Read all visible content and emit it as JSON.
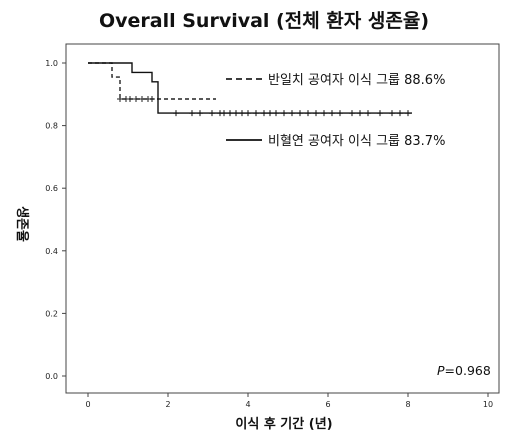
{
  "title": "Overall Survival (전체 환자 생존율)",
  "chart_data": {
    "type": "line",
    "title": "Overall Survival (전체 환자 생존율)",
    "xlabel": "이식 후 기간 (년)",
    "ylabel": "생존율",
    "xlim": [
      0,
      10
    ],
    "ylim": [
      0,
      1.0
    ],
    "x_ticks": [
      "0",
      "2",
      "4",
      "6",
      "8",
      "10"
    ],
    "y_ticks": [
      "0.0",
      "0.2",
      "0.4",
      "0.6",
      "0.8",
      "1.0"
    ],
    "annotation": "P=0.968",
    "annotation_parts": {
      "italic": "P",
      "rest": "=0.968"
    },
    "series": [
      {
        "name": "반일치 공여자 이식 그룹 88.6%",
        "style": "dashed",
        "color": "#222222",
        "step_x": [
          0,
          0.5,
          0.6,
          0.8,
          3.2
        ],
        "step_y": [
          1.0,
          1.0,
          0.955,
          0.885,
          0.885
        ],
        "censored": [
          {
            "x": 0.8,
            "y": 0.885
          },
          {
            "x": 0.95,
            "y": 0.885
          },
          {
            "x": 1.05,
            "y": 0.885
          },
          {
            "x": 1.2,
            "y": 0.885
          },
          {
            "x": 1.35,
            "y": 0.885
          },
          {
            "x": 1.5,
            "y": 0.885
          },
          {
            "x": 1.6,
            "y": 0.885
          }
        ]
      },
      {
        "name": "비혈연 공여자 이식 그룹 83.7%",
        "style": "solid",
        "color": "#111111",
        "step_x": [
          0,
          0.7,
          1.1,
          1.6,
          1.75,
          8.1
        ],
        "step_y": [
          1.0,
          1.0,
          0.97,
          0.94,
          0.84,
          0.84
        ],
        "censored": [
          {
            "x": 2.2,
            "y": 0.84
          },
          {
            "x": 2.6,
            "y": 0.84
          },
          {
            "x": 2.8,
            "y": 0.84
          },
          {
            "x": 3.1,
            "y": 0.84
          },
          {
            "x": 3.3,
            "y": 0.84
          },
          {
            "x": 3.4,
            "y": 0.84
          },
          {
            "x": 3.55,
            "y": 0.84
          },
          {
            "x": 3.7,
            "y": 0.84
          },
          {
            "x": 3.85,
            "y": 0.84
          },
          {
            "x": 4.0,
            "y": 0.84
          },
          {
            "x": 4.2,
            "y": 0.84
          },
          {
            "x": 4.4,
            "y": 0.84
          },
          {
            "x": 4.55,
            "y": 0.84
          },
          {
            "x": 4.7,
            "y": 0.84
          },
          {
            "x": 4.9,
            "y": 0.84
          },
          {
            "x": 5.1,
            "y": 0.84
          },
          {
            "x": 5.3,
            "y": 0.84
          },
          {
            "x": 5.5,
            "y": 0.84
          },
          {
            "x": 5.7,
            "y": 0.84
          },
          {
            "x": 5.9,
            "y": 0.84
          },
          {
            "x": 6.1,
            "y": 0.84
          },
          {
            "x": 6.3,
            "y": 0.84
          },
          {
            "x": 6.6,
            "y": 0.84
          },
          {
            "x": 6.8,
            "y": 0.84
          },
          {
            "x": 7.0,
            "y": 0.84
          },
          {
            "x": 7.3,
            "y": 0.84
          },
          {
            "x": 7.6,
            "y": 0.84
          },
          {
            "x": 7.8,
            "y": 0.84
          },
          {
            "x": 8.0,
            "y": 0.84
          }
        ]
      }
    ],
    "legend_placement": "top-right",
    "grid": false
  }
}
